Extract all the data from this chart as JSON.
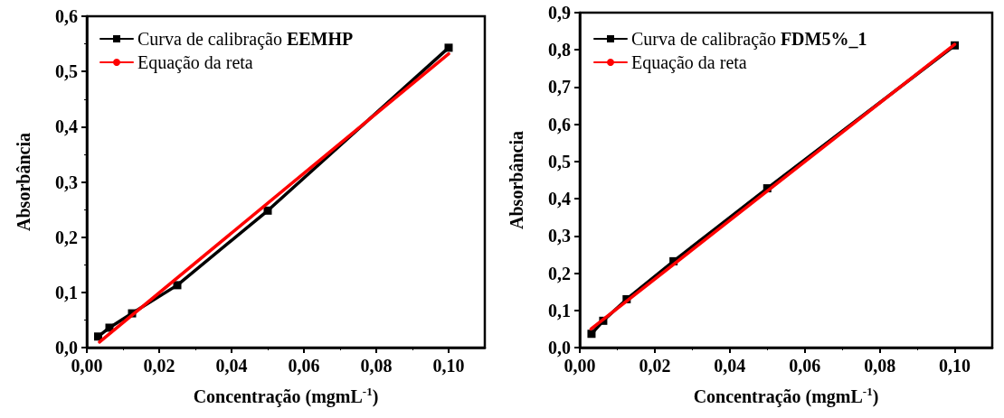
{
  "chart_data": [
    {
      "type": "line",
      "xlabel": "Concentração (mgmL$^{-1}$)",
      "ylabel": "Absorbância",
      "legend": "top left",
      "grid": false,
      "xlim": [
        0,
        0.11
      ],
      "xticks": [
        {
          "value": 0,
          "label": "0,00"
        },
        {
          "value": 0.02,
          "label": "0,02"
        },
        {
          "value": 0.04,
          "label": "0,04"
        },
        {
          "value": 0.06,
          "label": "0,06"
        },
        {
          "value": 0.08,
          "label": "0,08"
        },
        {
          "value": 0.1,
          "label": "0,10"
        }
      ],
      "ylim": [
        0,
        0.6
      ],
      "yticks": [
        {
          "value": 0,
          "label": "0,0"
        },
        {
          "value": 0.1,
          "label": "0,1"
        },
        {
          "value": 0.2,
          "label": "0,2"
        },
        {
          "value": 0.3,
          "label": "0,3"
        },
        {
          "value": 0.4,
          "label": "0,4"
        },
        {
          "value": 0.5,
          "label": "0,5"
        },
        {
          "value": 0.6,
          "label": "0,6"
        }
      ],
      "series": [
        {
          "name": "Curva de calibração EEMHP",
          "color": "#000000",
          "marker": "square",
          "x": [
            0.003125,
            0.00625,
            0.0125,
            0.025,
            0.05,
            0.1
          ],
          "values": [
            0.02,
            0.036,
            0.062,
            0.113,
            0.248,
            0.543
          ]
        },
        {
          "name": "Equação da reta",
          "color": "#ff0000",
          "marker": "none",
          "x": [
            0.0035,
            0.1
          ],
          "values": [
            0.01,
            0.532
          ]
        }
      ]
    },
    {
      "type": "line",
      "xlabel": "Concentração (mgmL$^{-1}$)",
      "ylabel": "Absorbância",
      "legend": "top left",
      "grid": false,
      "xlim": [
        0,
        0.11
      ],
      "xticks": [
        {
          "value": 0,
          "label": "0,00"
        },
        {
          "value": 0.02,
          "label": "0,02"
        },
        {
          "value": 0.04,
          "label": "0,04"
        },
        {
          "value": 0.06,
          "label": "0,06"
        },
        {
          "value": 0.08,
          "label": "0,08"
        },
        {
          "value": 0.1,
          "label": "0,10"
        }
      ],
      "ylim": [
        0,
        0.9
      ],
      "yticks": [
        {
          "value": 0,
          "label": "0,0"
        },
        {
          "value": 0.1,
          "label": "0,1"
        },
        {
          "value": 0.2,
          "label": "0,2"
        },
        {
          "value": 0.3,
          "label": "0,3"
        },
        {
          "value": 0.4,
          "label": "0,4"
        },
        {
          "value": 0.5,
          "label": "0,5"
        },
        {
          "value": 0.6,
          "label": "0,6"
        },
        {
          "value": 0.7,
          "label": "0,7"
        },
        {
          "value": 0.8,
          "label": "0,8"
        },
        {
          "value": 0.9,
          "label": "0,9"
        }
      ],
      "series": [
        {
          "name": "Curva de calibração FDM5%_1",
          "color": "#000000",
          "marker": "square",
          "x": [
            0.003125,
            0.00625,
            0.0125,
            0.025,
            0.05,
            0.1
          ],
          "values": [
            0.037,
            0.072,
            0.13,
            0.232,
            0.428,
            0.812
          ]
        },
        {
          "name": "Equação da reta",
          "color": "#ff0000",
          "marker": "none",
          "x": [
            0.003,
            0.1
          ],
          "values": [
            0.05,
            0.815
          ]
        }
      ]
    }
  ]
}
